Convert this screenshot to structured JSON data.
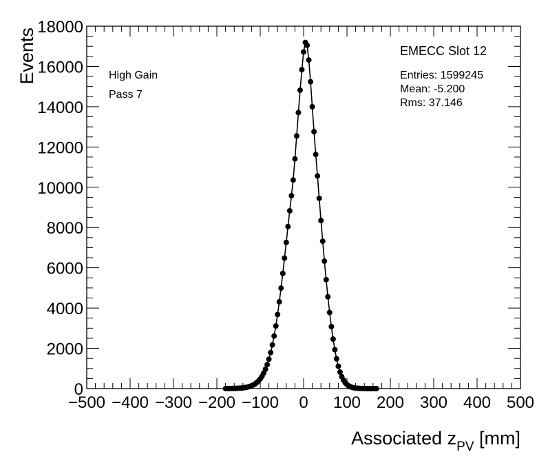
{
  "chart_data": {
    "type": "scatter",
    "title": "",
    "xlabel": {
      "main": "Associated z",
      "sub": "PV",
      "unit": " [mm]"
    },
    "ylabel": "Events",
    "xlim": [
      -500,
      500
    ],
    "ylim": [
      0,
      18000
    ],
    "x_ticks": [
      "−500",
      "−400",
      "−300",
      "−200",
      "−100",
      "0",
      "100",
      "200",
      "300",
      "400",
      "500"
    ],
    "y_ticks": [
      "0",
      "2000",
      "4000",
      "6000",
      "8000",
      "10000",
      "12000",
      "14000",
      "16000",
      "18000"
    ],
    "annotations": {
      "label1": "High Gain",
      "label2": "Pass 7",
      "slot": "EMECC Slot 12",
      "entries": "Entries: 1599245",
      "mean": "Mean: -5.200",
      "rms": "Rms: 37.146"
    },
    "series": [
      {
        "x": [
          -180,
          -176,
          -172,
          -168,
          -164,
          -160,
          -156,
          -152,
          -148,
          -144,
          -140,
          -136,
          -132,
          -128,
          -124,
          -120,
          -116,
          -112,
          -108,
          -104,
          -100,
          -96,
          -92,
          -88,
          -84,
          -80,
          -76,
          -72,
          -68,
          -64,
          -60,
          -56,
          -52,
          -48,
          -44,
          -40,
          -36,
          -32,
          -28,
          -24,
          -20,
          -16,
          -12,
          -8,
          -4,
          0,
          4,
          8,
          12,
          16,
          20,
          24,
          28,
          32,
          36,
          40,
          44,
          48,
          52,
          56,
          60,
          64,
          68,
          72,
          76,
          80,
          84,
          88,
          92,
          96,
          100,
          104,
          108,
          112,
          116,
          120,
          124,
          128,
          132,
          136,
          140,
          144,
          148,
          152,
          156,
          160,
          164,
          168
        ],
        "y": [
          2,
          3,
          4,
          5,
          7,
          9,
          12,
          15,
          20,
          26,
          35,
          47,
          62,
          83,
          108,
          140,
          180,
          230,
          300,
          380,
          480,
          610,
          770,
          960,
          1190,
          1460,
          1790,
          2170,
          2610,
          3110,
          3680,
          4310,
          4990,
          5720,
          6480,
          7260,
          8050,
          8830,
          9580,
          10360,
          11410,
          12550,
          13710,
          14820,
          15840,
          16720,
          17190,
          17050,
          16320,
          15240,
          14000,
          12760,
          11630,
          10560,
          9450,
          8350,
          7320,
          6330,
          5410,
          4560,
          3780,
          3080,
          2460,
          1930,
          1480,
          1110,
          820,
          590,
          420,
          290,
          200,
          135,
          90,
          60,
          40,
          27,
          18,
          12,
          8,
          6,
          4,
          3,
          2,
          2,
          1,
          1,
          1,
          1
        ]
      }
    ]
  }
}
